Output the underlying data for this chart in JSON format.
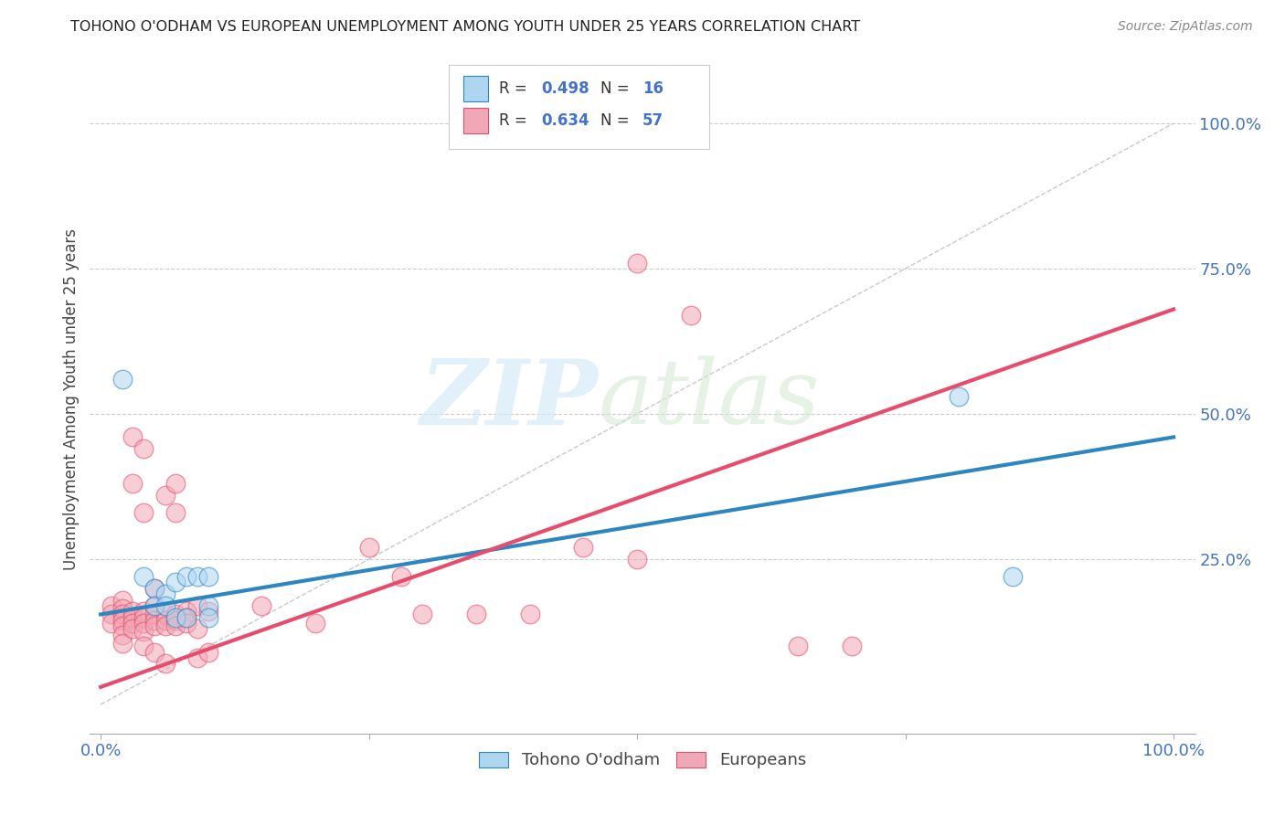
{
  "title": "TOHONO O'ODHAM VS EUROPEAN UNEMPLOYMENT AMONG YOUTH UNDER 25 YEARS CORRELATION CHART",
  "source": "Source: ZipAtlas.com",
  "ylabel": "Unemployment Among Youth under 25 years",
  "ylabel_right_ticks": [
    "100.0%",
    "75.0%",
    "50.0%",
    "25.0%"
  ],
  "ylabel_right_vals": [
    1.0,
    0.75,
    0.5,
    0.25
  ],
  "legend_bottom1": "Tohono O'odham",
  "legend_bottom2": "Europeans",
  "color_blue": "#AED6F1",
  "color_pink": "#F1A7B5",
  "line_blue": "#2E86C1",
  "line_pink": "#E74C6C",
  "line_diagonal": "#BBBBBB",
  "blue_points": [
    [
      0.02,
      0.56
    ],
    [
      0.04,
      0.22
    ],
    [
      0.05,
      0.2
    ],
    [
      0.05,
      0.17
    ],
    [
      0.06,
      0.19
    ],
    [
      0.06,
      0.17
    ],
    [
      0.07,
      0.21
    ],
    [
      0.07,
      0.15
    ],
    [
      0.08,
      0.22
    ],
    [
      0.08,
      0.15
    ],
    [
      0.09,
      0.22
    ],
    [
      0.1,
      0.22
    ],
    [
      0.1,
      0.17
    ],
    [
      0.1,
      0.15
    ],
    [
      0.8,
      0.53
    ],
    [
      0.85,
      0.22
    ]
  ],
  "pink_points": [
    [
      0.01,
      0.17
    ],
    [
      0.01,
      0.155
    ],
    [
      0.01,
      0.14
    ],
    [
      0.02,
      0.18
    ],
    [
      0.02,
      0.165
    ],
    [
      0.02,
      0.155
    ],
    [
      0.02,
      0.145
    ],
    [
      0.02,
      0.135
    ],
    [
      0.02,
      0.12
    ],
    [
      0.02,
      0.105
    ],
    [
      0.03,
      0.46
    ],
    [
      0.03,
      0.38
    ],
    [
      0.03,
      0.16
    ],
    [
      0.03,
      0.15
    ],
    [
      0.03,
      0.14
    ],
    [
      0.03,
      0.13
    ],
    [
      0.04,
      0.44
    ],
    [
      0.04,
      0.33
    ],
    [
      0.04,
      0.16
    ],
    [
      0.04,
      0.15
    ],
    [
      0.04,
      0.14
    ],
    [
      0.04,
      0.125
    ],
    [
      0.04,
      0.1
    ],
    [
      0.05,
      0.2
    ],
    [
      0.05,
      0.17
    ],
    [
      0.05,
      0.155
    ],
    [
      0.05,
      0.145
    ],
    [
      0.05,
      0.135
    ],
    [
      0.05,
      0.09
    ],
    [
      0.06,
      0.36
    ],
    [
      0.06,
      0.155
    ],
    [
      0.06,
      0.145
    ],
    [
      0.06,
      0.135
    ],
    [
      0.06,
      0.07
    ],
    [
      0.07,
      0.38
    ],
    [
      0.07,
      0.33
    ],
    [
      0.07,
      0.155
    ],
    [
      0.07,
      0.145
    ],
    [
      0.07,
      0.135
    ],
    [
      0.08,
      0.16
    ],
    [
      0.08,
      0.15
    ],
    [
      0.08,
      0.14
    ],
    [
      0.09,
      0.17
    ],
    [
      0.09,
      0.13
    ],
    [
      0.09,
      0.08
    ],
    [
      0.1,
      0.16
    ],
    [
      0.1,
      0.09
    ],
    [
      0.15,
      0.17
    ],
    [
      0.2,
      0.14
    ],
    [
      0.25,
      0.27
    ],
    [
      0.28,
      0.22
    ],
    [
      0.3,
      0.155
    ],
    [
      0.35,
      0.155
    ],
    [
      0.4,
      0.155
    ],
    [
      0.45,
      0.27
    ],
    [
      0.5,
      0.76
    ],
    [
      0.5,
      0.25
    ],
    [
      0.55,
      0.67
    ],
    [
      0.65,
      0.1
    ],
    [
      0.7,
      0.1
    ]
  ],
  "blue_slope": 0.305,
  "blue_intercept": 0.155,
  "pink_slope": 0.65,
  "pink_intercept": 0.03
}
